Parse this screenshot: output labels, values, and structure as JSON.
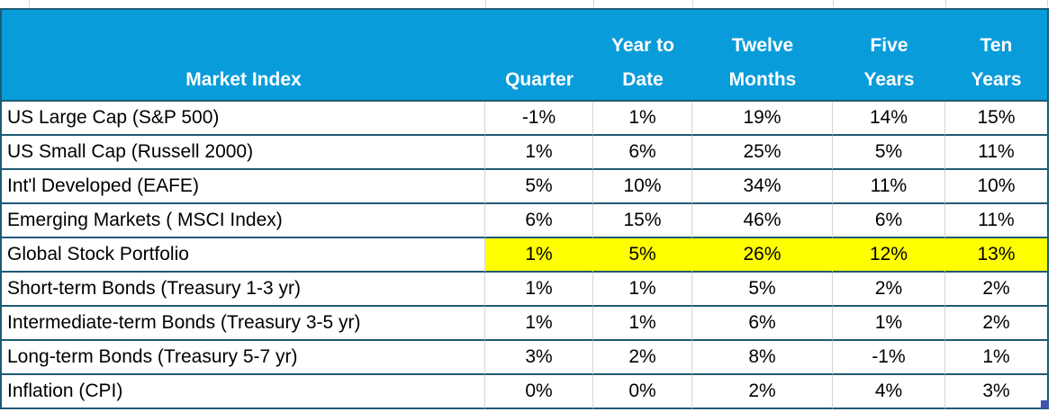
{
  "colors": {
    "header_bg": "#099CDB",
    "row_border": "#1E5A75",
    "gridline": "#D4D4D4",
    "highlight": "#FFFF00",
    "header_text": "#FFFFFF",
    "body_text": "#000000",
    "fill_handle": "#3F55B0"
  },
  "header": {
    "market_index_label": "Market Index",
    "columns": [
      {
        "line1": "",
        "line2": "Quarter"
      },
      {
        "line1": "Year to",
        "line2": "Date"
      },
      {
        "line1": "Twelve",
        "line2": "Months"
      },
      {
        "line1": "Five",
        "line2": "Years"
      },
      {
        "line1": "Ten",
        "line2": "Years"
      }
    ]
  },
  "rows": [
    {
      "label": "US Large Cap (S&P 500)",
      "values": [
        "-1%",
        "1%",
        "19%",
        "14%",
        "15%"
      ],
      "highlight": false
    },
    {
      "label": "US Small Cap (Russell 2000)",
      "values": [
        "1%",
        "6%",
        "25%",
        "5%",
        "11%"
      ],
      "highlight": false
    },
    {
      "label": "Int'l Developed (EAFE)",
      "values": [
        "5%",
        "10%",
        "34%",
        "11%",
        "10%"
      ],
      "highlight": false
    },
    {
      "label": "Emerging Markets ( MSCI Index)",
      "values": [
        "6%",
        "15%",
        "46%",
        "6%",
        "11%"
      ],
      "highlight": false
    },
    {
      "label": "Global Stock Portfolio",
      "values": [
        "1%",
        "5%",
        "26%",
        "12%",
        "13%"
      ],
      "highlight": true
    },
    {
      "label": "Short-term Bonds (Treasury 1-3 yr)",
      "values": [
        "1%",
        "1%",
        "5%",
        "2%",
        "2%"
      ],
      "highlight": false
    },
    {
      "label": "Intermediate-term Bonds (Treasury 3-5 yr)",
      "values": [
        "1%",
        "1%",
        "6%",
        "1%",
        "2%"
      ],
      "highlight": false
    },
    {
      "label": "Long-term Bonds (Treasury 5-7 yr)",
      "values": [
        "3%",
        "2%",
        "8%",
        "-1%",
        "1%"
      ],
      "highlight": false
    },
    {
      "label": "Inflation (CPI)",
      "values": [
        "0%",
        "0%",
        "2%",
        "4%",
        "3%"
      ],
      "highlight": false
    }
  ]
}
